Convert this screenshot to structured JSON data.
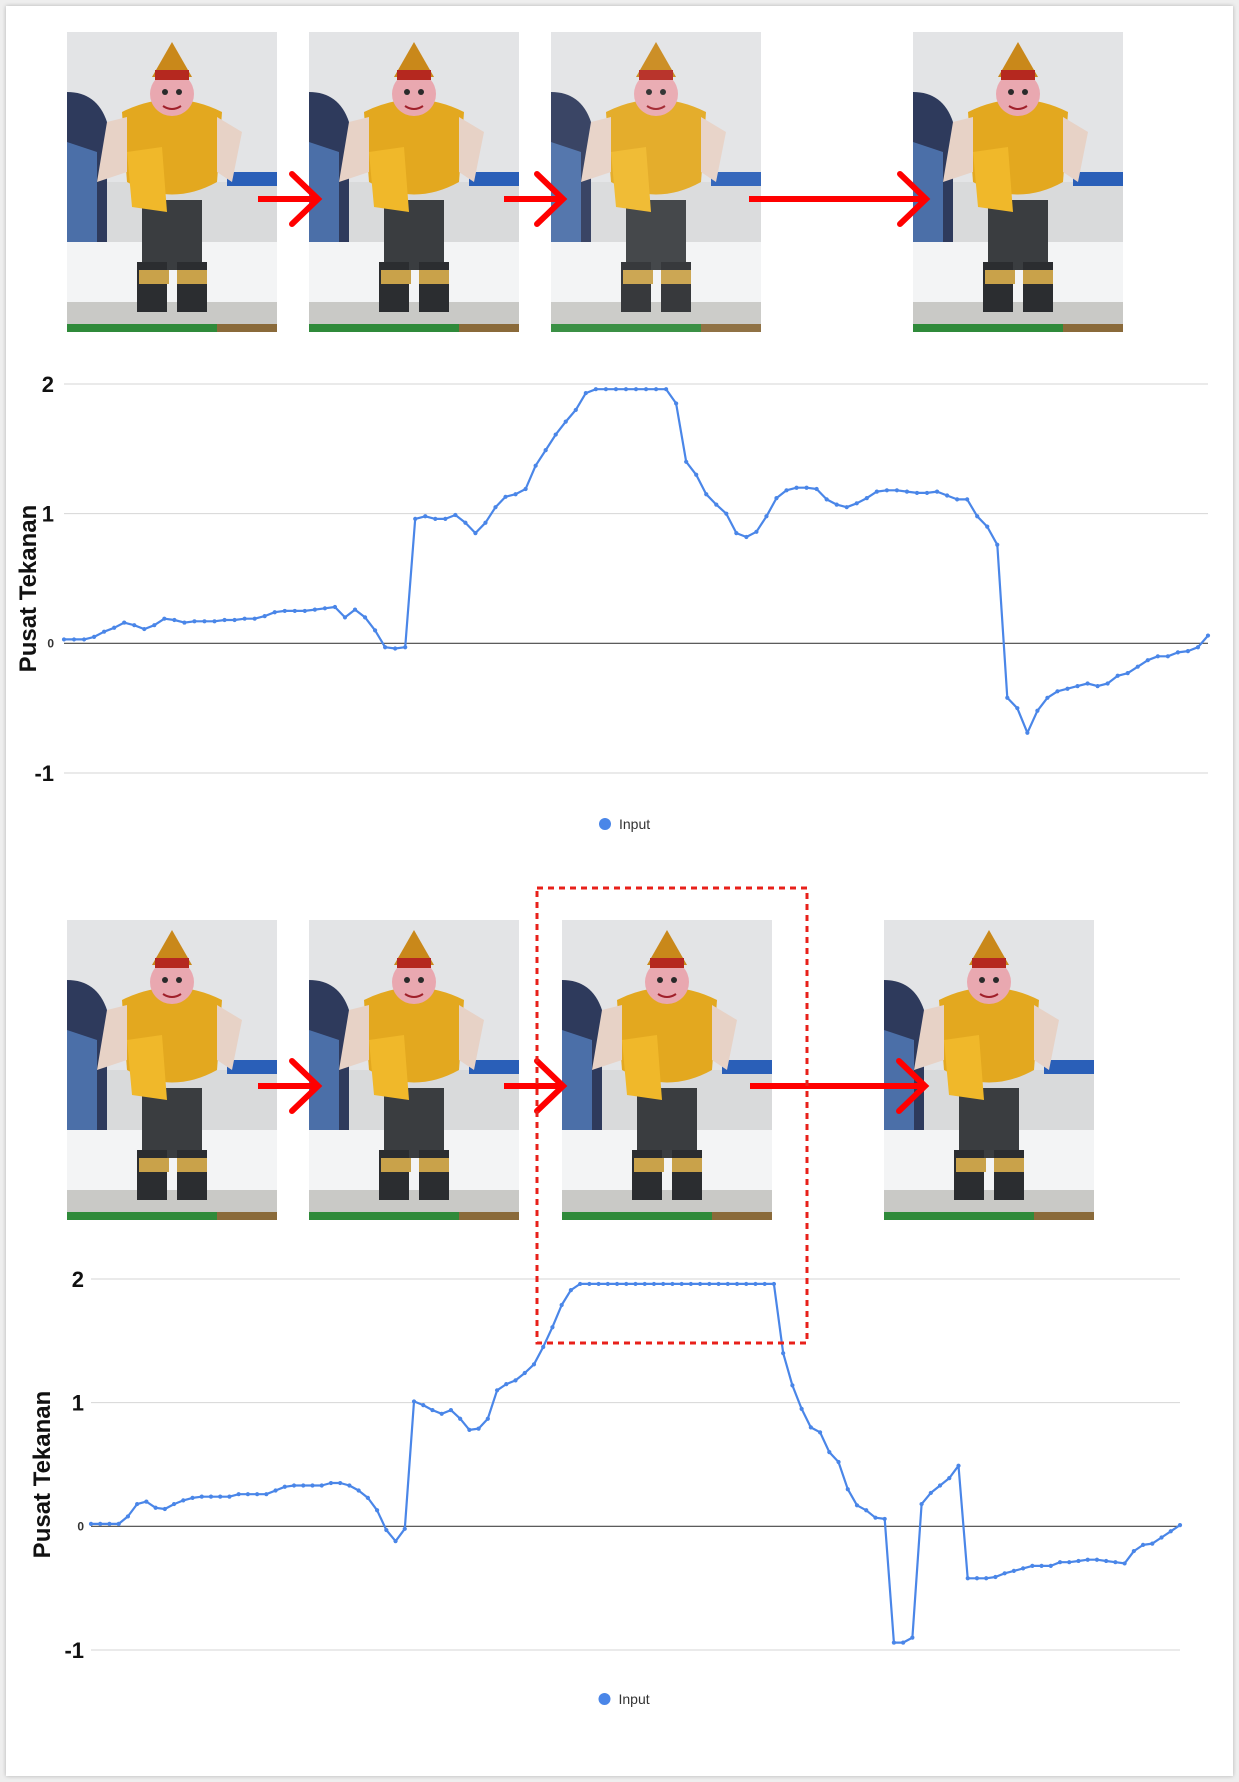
{
  "colors": {
    "series": "#4a86e8",
    "arrow": "#ff0000",
    "highlight": "#e8201a",
    "grid": "#d6d6d6",
    "zeroline": "#444444"
  },
  "sequence_top": {
    "frames": [
      {
        "pose": "standing",
        "icon": "robot-dancer-photo"
      },
      {
        "pose": "standing",
        "icon": "robot-dancer-photo"
      },
      {
        "pose": "leaning",
        "icon": "robot-dancer-photo"
      },
      {
        "pose": "standing",
        "icon": "robot-dancer-photo"
      }
    ]
  },
  "sequence_bottom": {
    "frames": [
      {
        "pose": "standing",
        "icon": "robot-dancer-photo"
      },
      {
        "pose": "standing",
        "icon": "robot-dancer-photo"
      },
      {
        "pose": "falling",
        "icon": "robot-dancer-photo"
      },
      {
        "pose": "standing",
        "icon": "robot-dancer-photo"
      }
    ]
  },
  "chart_data": [
    {
      "type": "line",
      "title": "",
      "ylabel": "Pusat Tekanan",
      "xlabel": "",
      "ylim": [
        -1,
        2
      ],
      "yticks": [
        "2",
        "1",
        "0",
        "-1"
      ],
      "grid": true,
      "legend": "bottom-center",
      "series": [
        {
          "name": "Input",
          "values": [
            0.03,
            0.03,
            0.03,
            0.05,
            0.09,
            0.12,
            0.16,
            0.14,
            0.11,
            0.14,
            0.19,
            0.18,
            0.16,
            0.17,
            0.17,
            0.17,
            0.18,
            0.18,
            0.19,
            0.19,
            0.21,
            0.24,
            0.25,
            0.25,
            0.25,
            0.26,
            0.27,
            0.28,
            0.2,
            0.26,
            0.2,
            0.1,
            -0.03,
            -0.04,
            -0.03,
            0.96,
            0.98,
            0.96,
            0.96,
            0.99,
            0.93,
            0.85,
            0.93,
            1.05,
            1.13,
            1.15,
            1.19,
            1.37,
            1.49,
            1.61,
            1.71,
            1.8,
            1.93,
            1.96,
            1.96,
            1.96,
            1.96,
            1.96,
            1.96,
            1.96,
            1.96,
            1.85,
            1.4,
            1.3,
            1.15,
            1.07,
            1.0,
            0.85,
            0.82,
            0.86,
            0.98,
            1.12,
            1.18,
            1.2,
            1.2,
            1.19,
            1.11,
            1.07,
            1.05,
            1.08,
            1.12,
            1.17,
            1.18,
            1.18,
            1.17,
            1.16,
            1.16,
            1.17,
            1.14,
            1.11,
            1.11,
            0.98,
            0.9,
            0.76,
            -0.42,
            -0.5,
            -0.69,
            -0.52,
            -0.42,
            -0.37,
            -0.35,
            -0.33,
            -0.31,
            -0.33,
            -0.31,
            -0.25,
            -0.23,
            -0.18,
            -0.13,
            -0.1,
            -0.1,
            -0.07,
            -0.06,
            -0.03,
            0.06
          ]
        }
      ]
    },
    {
      "type": "line",
      "title": "",
      "ylabel": "Pusat Tekanan",
      "xlabel": "",
      "ylim": [
        -1,
        2
      ],
      "yticks": [
        "2",
        "1",
        "0",
        "-1"
      ],
      "grid": true,
      "legend": "bottom-center",
      "series": [
        {
          "name": "Input",
          "values": [
            0.02,
            0.02,
            0.02,
            0.02,
            0.08,
            0.18,
            0.2,
            0.15,
            0.14,
            0.18,
            0.21,
            0.23,
            0.24,
            0.24,
            0.24,
            0.24,
            0.26,
            0.26,
            0.26,
            0.26,
            0.29,
            0.32,
            0.33,
            0.33,
            0.33,
            0.33,
            0.35,
            0.35,
            0.33,
            0.29,
            0.23,
            0.13,
            -0.03,
            -0.12,
            -0.02,
            1.01,
            0.98,
            0.94,
            0.91,
            0.94,
            0.87,
            0.78,
            0.79,
            0.87,
            1.1,
            1.15,
            1.18,
            1.24,
            1.31,
            1.45,
            1.61,
            1.79,
            1.91,
            1.96,
            1.96,
            1.96,
            1.96,
            1.96,
            1.96,
            1.96,
            1.96,
            1.96,
            1.96,
            1.96,
            1.96,
            1.96,
            1.96,
            1.96,
            1.96,
            1.96,
            1.96,
            1.96,
            1.96,
            1.96,
            1.96,
            1.4,
            1.14,
            0.95,
            0.8,
            0.76,
            0.6,
            0.52,
            0.3,
            0.17,
            0.13,
            0.07,
            0.06,
            -0.94,
            -0.94,
            -0.9,
            0.18,
            0.27,
            0.33,
            0.39,
            0.49,
            -0.42,
            -0.42,
            -0.42,
            -0.41,
            -0.38,
            -0.36,
            -0.34,
            -0.32,
            -0.32,
            -0.32,
            -0.29,
            -0.29,
            -0.28,
            -0.27,
            -0.27,
            -0.28,
            -0.29,
            -0.3,
            -0.2,
            -0.15,
            -0.14,
            -0.09,
            -0.04,
            0.01
          ]
        }
      ]
    }
  ]
}
